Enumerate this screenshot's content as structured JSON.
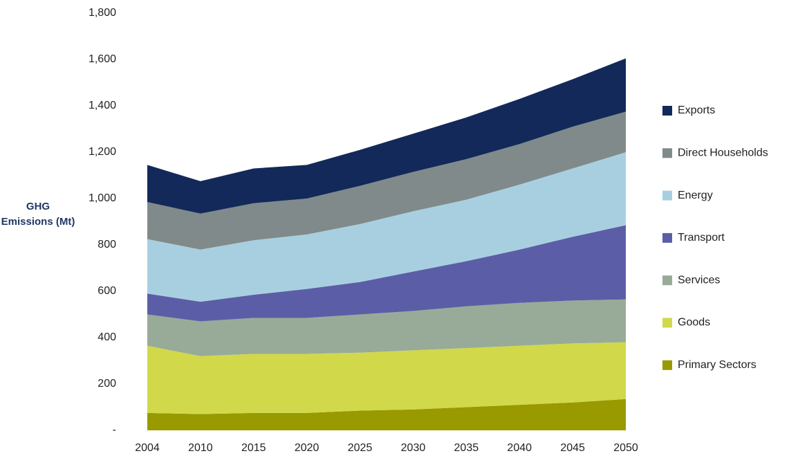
{
  "chart_data": {
    "type": "stacked_area",
    "y_axis_label": "GHG Emissions (Mt)",
    "categories": [
      "2004",
      "2010",
      "2015",
      "2020",
      "2025",
      "2030",
      "2035",
      "2040",
      "2045",
      "2050"
    ],
    "series": [
      {
        "name": "Primary Sectors",
        "color": "#989a00",
        "values": [
          75,
          70,
          75,
          75,
          85,
          90,
          100,
          110,
          120,
          135
        ]
      },
      {
        "name": "Goods",
        "color": "#d1d84a",
        "values": [
          290,
          250,
          255,
          255,
          250,
          255,
          255,
          255,
          255,
          245
        ]
      },
      {
        "name": "Services",
        "color": "#98ab98",
        "values": [
          135,
          150,
          155,
          155,
          165,
          170,
          180,
          185,
          185,
          185
        ]
      },
      {
        "name": "Transport",
        "color": "#5b5ea6",
        "values": [
          90,
          85,
          100,
          125,
          140,
          170,
          195,
          230,
          275,
          320
        ]
      },
      {
        "name": "Energy",
        "color": "#a8cfe0",
        "values": [
          235,
          225,
          235,
          235,
          250,
          260,
          265,
          280,
          295,
          315
        ]
      },
      {
        "name": "Direct Households",
        "color": "#808a8a",
        "values": [
          160,
          155,
          160,
          155,
          165,
          170,
          175,
          175,
          180,
          175
        ]
      },
      {
        "name": "Exports",
        "color": "#12295a",
        "values": [
          160,
          140,
          150,
          145,
          155,
          165,
          180,
          195,
          205,
          230
        ]
      }
    ],
    "ylim": [
      0,
      1800
    ],
    "yticks": [
      {
        "value": 0,
        "label": "-"
      },
      200,
      400,
      600,
      800,
      {
        "value": 1000,
        "label": "1,000"
      },
      {
        "value": 1200,
        "label": "1,200"
      },
      {
        "value": 1400,
        "label": "1,400"
      },
      {
        "value": 1600,
        "label": "1,600"
      },
      {
        "value": 1800,
        "label": "1,800"
      }
    ],
    "legend": "right"
  }
}
